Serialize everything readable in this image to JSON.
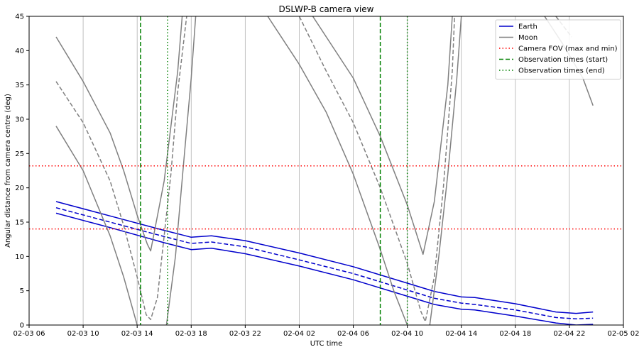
{
  "chart_data": {
    "type": "line",
    "title": "DSLWP-B camera view",
    "xlabel": "UTC time",
    "ylabel": "Angular distance from camera centre (deg)",
    "x_ticks": [
      "02-03 06",
      "02-03 10",
      "02-03 14",
      "02-03 18",
      "02-03 22",
      "02-04 02",
      "02-04 06",
      "02-04 10",
      "02-04 14",
      "02-04 18",
      "02-04 22",
      "02-05 02"
    ],
    "xlim": [
      "02-03 06:00",
      "02-05 02:00"
    ],
    "y_ticks": [
      0,
      5,
      10,
      15,
      20,
      25,
      30,
      35,
      40,
      45
    ],
    "ylim": [
      0,
      45
    ],
    "grid": "vertical",
    "legend_position": "top-right",
    "legend": [
      {
        "label": "Earth",
        "color": "#0000cc",
        "style": "solid"
      },
      {
        "label": "Moon",
        "color": "#808080",
        "style": "solid"
      },
      {
        "label": "Camera FOV (max and min)",
        "color": "#ff0000",
        "style": "dotted"
      },
      {
        "label": "Observation times (start)",
        "color": "#008000",
        "style": "dashed"
      },
      {
        "label": "Observation times (end)",
        "color": "#008000",
        "style": "dotted"
      }
    ],
    "hlines": [
      {
        "y": 23.2,
        "color": "#ff0000",
        "style": "dotted"
      },
      {
        "y": 14.0,
        "color": "#ff0000",
        "style": "dotted"
      }
    ],
    "vlines": [
      {
        "x": "02-03 14:15",
        "color": "#008000",
        "style": "dashed"
      },
      {
        "x": "02-03 16:15",
        "color": "#008000",
        "style": "dotted"
      },
      {
        "x": "02-04 08:00",
        "color": "#008000",
        "style": "dashed"
      },
      {
        "x": "02-04 10:00",
        "color": "#008000",
        "style": "dotted"
      }
    ],
    "series": [
      {
        "name": "Earth",
        "color": "#0000cc",
        "style": "solid",
        "points": [
          [
            "02-03 08:00",
            18.0
          ],
          [
            "02-03 12:00",
            15.9
          ],
          [
            "02-03 16:00",
            13.8
          ],
          [
            "02-03 18:00",
            12.8
          ],
          [
            "02-03 19:30",
            13.0
          ],
          [
            "02-03 22:00",
            12.3
          ],
          [
            "02-04 02:00",
            10.5
          ],
          [
            "02-04 06:00",
            8.5
          ],
          [
            "02-04 10:00",
            6.1
          ],
          [
            "02-04 12:00",
            4.9
          ],
          [
            "02-04 14:00",
            4.1
          ],
          [
            "02-04 15:00",
            4.0
          ],
          [
            "02-04 18:00",
            3.1
          ],
          [
            "02-04 21:00",
            1.9
          ],
          [
            "02-04 22:30",
            1.7
          ],
          [
            "02-04 23:45",
            1.9
          ]
        ]
      },
      {
        "name": "",
        "color": "#0000cc",
        "style": "dashed",
        "points": [
          [
            "02-03 08:00",
            17.1
          ],
          [
            "02-03 12:00",
            15.0
          ],
          [
            "02-03 16:00",
            12.9
          ],
          [
            "02-03 18:00",
            11.9
          ],
          [
            "02-03 19:30",
            12.1
          ],
          [
            "02-03 22:00",
            11.4
          ],
          [
            "02-04 02:00",
            9.5
          ],
          [
            "02-04 06:00",
            7.5
          ],
          [
            "02-04 10:00",
            5.1
          ],
          [
            "02-04 12:00",
            3.9
          ],
          [
            "02-04 14:00",
            3.2
          ],
          [
            "02-04 15:00",
            3.0
          ],
          [
            "02-04 18:00",
            2.2
          ],
          [
            "02-04 21:00",
            1.1
          ],
          [
            "02-04 22:30",
            0.9
          ],
          [
            "02-04 23:45",
            1.0
          ]
        ]
      },
      {
        "name": "",
        "color": "#0000cc",
        "style": "solid",
        "points": [
          [
            "02-03 08:00",
            16.3
          ],
          [
            "02-03 12:00",
            14.2
          ],
          [
            "02-03 16:00",
            12.0
          ],
          [
            "02-03 18:00",
            11.0
          ],
          [
            "02-03 19:30",
            11.2
          ],
          [
            "02-03 22:00",
            10.4
          ],
          [
            "02-04 02:00",
            8.6
          ],
          [
            "02-04 06:00",
            6.6
          ],
          [
            "02-04 10:00",
            4.2
          ],
          [
            "02-04 12:00",
            3.0
          ],
          [
            "02-04 14:00",
            2.3
          ],
          [
            "02-04 15:00",
            2.2
          ],
          [
            "02-04 18:00",
            1.3
          ],
          [
            "02-04 21:00",
            0.3
          ],
          [
            "02-04 22:30",
            0.0
          ],
          [
            "02-04 23:45",
            0.1
          ]
        ]
      },
      {
        "name": "Moon",
        "color": "#808080",
        "style": "solid",
        "points": [
          [
            "02-03 08:00",
            42.0
          ],
          [
            "02-03 10:00",
            35.5
          ],
          [
            "02-03 12:00",
            28.0
          ],
          [
            "02-03 13:00",
            22.5
          ],
          [
            "02-03 14:00",
            16.0
          ],
          [
            "02-03 14:45",
            11.8
          ],
          [
            "02-03 15:00",
            10.8
          ],
          [
            "02-03 16:00",
            21.0
          ],
          [
            "02-03 17:00",
            37.0
          ],
          [
            "02-03 17:20",
            45.0
          ]
        ]
      },
      {
        "name": "",
        "color": "#808080",
        "style": "dashed",
        "points": [
          [
            "02-03 08:00",
            35.5
          ],
          [
            "02-03 10:00",
            29.5
          ],
          [
            "02-03 12:00",
            21.0
          ],
          [
            "02-03 13:00",
            14.5
          ],
          [
            "02-03 14:00",
            7.0
          ],
          [
            "02-03 14:40",
            1.5
          ],
          [
            "02-03 15:00",
            0.8
          ],
          [
            "02-03 15:30",
            4.0
          ],
          [
            "02-03 16:30",
            22.0
          ],
          [
            "02-03 17:00",
            34.0
          ],
          [
            "02-03 17:40",
            45.0
          ]
        ]
      },
      {
        "name": "",
        "color": "#808080",
        "style": "solid",
        "points": [
          [
            "02-03 08:00",
            29.0
          ],
          [
            "02-03 10:00",
            22.5
          ],
          [
            "02-03 12:00",
            13.0
          ],
          [
            "02-03 13:00",
            7.0
          ],
          [
            "02-03 14:00",
            0.0
          ]
        ]
      },
      {
        "name": "",
        "color": "#808080",
        "style": "solid",
        "points": [
          [
            "02-03 16:10",
            0.0
          ],
          [
            "02-03 16:50",
            10.0
          ],
          [
            "02-03 17:30",
            25.0
          ],
          [
            "02-03 18:00",
            36.0
          ],
          [
            "02-03 18:20",
            45.0
          ]
        ]
      },
      {
        "name": "",
        "color": "#808080",
        "style": "solid",
        "points": [
          [
            "02-03 23:40",
            45.0
          ],
          [
            "02-04 02:00",
            38.0
          ],
          [
            "02-04 04:00",
            31.0
          ],
          [
            "02-04 06:00",
            22.0
          ],
          [
            "02-04 08:00",
            11.0
          ],
          [
            "02-04 09:00",
            5.0
          ],
          [
            "02-04 10:00",
            0.0
          ]
        ]
      },
      {
        "name": "",
        "color": "#808080",
        "style": "dashed",
        "points": [
          [
            "02-04 02:00",
            45.0
          ],
          [
            "02-04 04:00",
            37.0
          ],
          [
            "02-04 06:00",
            29.5
          ],
          [
            "02-04 08:00",
            20.0
          ],
          [
            "02-04 10:00",
            9.0
          ],
          [
            "02-04 11:00",
            2.0
          ],
          [
            "02-04 11:20",
            0.5
          ],
          [
            "02-04 12:00",
            7.0
          ],
          [
            "02-04 12:40",
            20.0
          ],
          [
            "02-04 13:20",
            37.0
          ],
          [
            "02-04 13:30",
            45.0
          ]
        ]
      },
      {
        "name": "",
        "color": "#808080",
        "style": "solid",
        "points": [
          [
            "02-04 03:00",
            45.0
          ],
          [
            "02-04 06:00",
            36.0
          ],
          [
            "02-04 08:00",
            27.5
          ],
          [
            "02-04 10:00",
            17.5
          ],
          [
            "02-04 11:10",
            10.3
          ],
          [
            "02-04 12:00",
            18.0
          ],
          [
            "02-04 13:00",
            35.0
          ],
          [
            "02-04 13:20",
            45.0
          ]
        ]
      },
      {
        "name": "",
        "color": "#808080",
        "style": "solid",
        "points": [
          [
            "02-04 11:40",
            0.0
          ],
          [
            "02-04 12:20",
            10.0
          ],
          [
            "02-04 13:00",
            22.0
          ],
          [
            "02-04 13:40",
            36.0
          ],
          [
            "02-04 14:00",
            45.0
          ]
        ]
      },
      {
        "name": "",
        "color": "#808080",
        "style": "solid",
        "points": [
          [
            "02-04 20:10",
            45.0
          ],
          [
            "02-04 21:30",
            41.0
          ],
          [
            "02-04 23:00",
            36.0
          ],
          [
            "02-04 23:45",
            32.0
          ]
        ]
      },
      {
        "name": "",
        "color": "#808080",
        "style": "dashed",
        "points": [
          [
            "02-04 21:00",
            45.0
          ],
          [
            "02-04 22:10",
            42.0
          ]
        ]
      }
    ]
  }
}
